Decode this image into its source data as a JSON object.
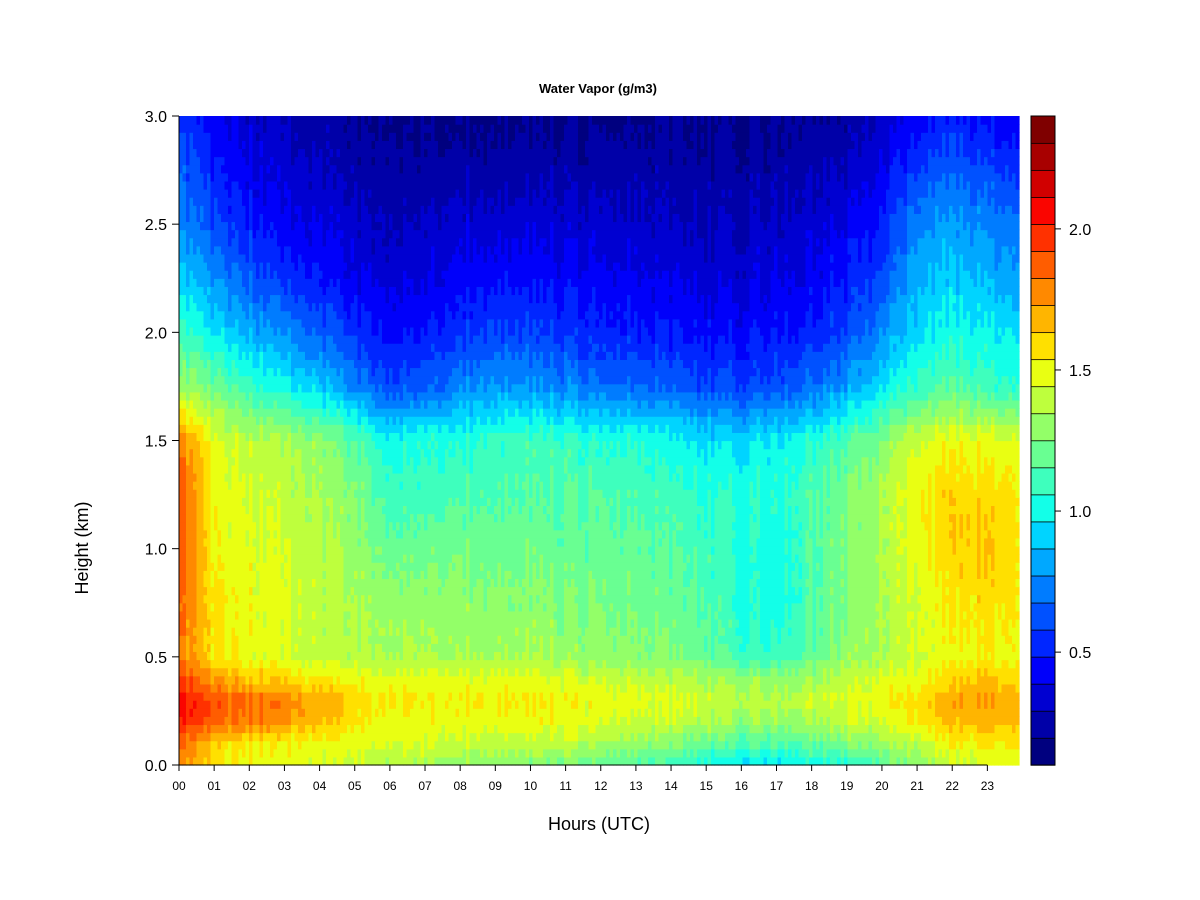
{
  "chart_data": {
    "type": "heatmap",
    "title": "Water Vapor (g/m3)",
    "xlabel": "Hours (UTC)",
    "ylabel": "Height (km)",
    "xlim": [
      0,
      23.9
    ],
    "ylim": [
      0.0,
      3.0
    ],
    "x_ticks": [
      0,
      1,
      2,
      3,
      4,
      5,
      6,
      7,
      8,
      9,
      10,
      11,
      12,
      13,
      14,
      15,
      16,
      17,
      18,
      19,
      20,
      21,
      22,
      23
    ],
    "x_tick_labels": [
      "00",
      "01",
      "02",
      "03",
      "04",
      "05",
      "06",
      "07",
      "08",
      "09",
      "10",
      "11",
      "12",
      "13",
      "14",
      "15",
      "16",
      "17",
      "18",
      "19",
      "20",
      "21",
      "22",
      "23"
    ],
    "y_ticks": [
      0.0,
      0.5,
      1.0,
      1.5,
      2.0,
      2.5,
      3.0
    ],
    "y_tick_labels": [
      "0.0",
      "0.5",
      "1.0",
      "1.5",
      "2.0",
      "2.5",
      "3.0"
    ],
    "colorbar": {
      "range": [
        0.1,
        2.4
      ],
      "levels": 23,
      "ticks": [
        0.5,
        1.0,
        1.5,
        2.0
      ],
      "tick_labels": [
        "0.5",
        "1.0",
        "1.5",
        "2.0"
      ],
      "colors": [
        "#00007f",
        "#0000a8",
        "#0000d1",
        "#0000fa",
        "#0026ff",
        "#0051ff",
        "#007cff",
        "#00a8ff",
        "#00d4ff",
        "#13ffe8",
        "#3effbd",
        "#69ff92",
        "#93ff68",
        "#beff3d",
        "#e9ff12",
        "#ffe000",
        "#ffb500",
        "#ff8900",
        "#ff5d00",
        "#ff3100",
        "#fa0500",
        "#d10000",
        "#a80000",
        "#7f0000"
      ]
    },
    "grid": false,
    "hours": [
      0,
      1,
      2,
      3,
      4,
      5,
      6,
      7,
      8,
      9,
      10,
      11,
      12,
      13,
      14,
      15,
      16,
      17,
      18,
      19,
      20,
      21,
      22,
      23,
      23.9
    ],
    "heights": [
      0.0,
      0.1,
      0.2,
      0.3,
      0.4,
      0.5,
      0.75,
      1.0,
      1.25,
      1.5,
      1.75,
      2.0,
      2.25,
      2.5,
      2.75,
      3.0
    ],
    "values": [
      [
        1.75,
        1.85,
        2.0,
        2.05,
        1.95,
        1.8,
        1.85,
        1.9,
        1.9,
        1.8,
        1.3,
        1.1,
        0.9,
        0.75,
        0.65,
        0.55
      ],
      [
        1.55,
        1.6,
        1.85,
        1.9,
        1.7,
        1.55,
        1.55,
        1.5,
        1.5,
        1.45,
        1.2,
        0.95,
        0.75,
        0.6,
        0.5,
        0.4
      ],
      [
        1.5,
        1.55,
        1.8,
        1.85,
        1.65,
        1.5,
        1.5,
        1.48,
        1.45,
        1.4,
        1.1,
        0.85,
        0.65,
        0.5,
        0.4,
        0.33
      ],
      [
        1.48,
        1.52,
        1.75,
        1.8,
        1.6,
        1.45,
        1.45,
        1.43,
        1.4,
        1.35,
        1.0,
        0.75,
        0.55,
        0.42,
        0.35,
        0.28
      ],
      [
        1.45,
        1.5,
        1.65,
        1.7,
        1.55,
        1.4,
        1.4,
        1.38,
        1.35,
        1.3,
        0.9,
        0.65,
        0.48,
        0.38,
        0.3,
        0.25
      ],
      [
        1.4,
        1.48,
        1.55,
        1.6,
        1.5,
        1.38,
        1.35,
        1.3,
        1.25,
        1.15,
        0.75,
        0.55,
        0.4,
        0.32,
        0.25,
        0.2
      ],
      [
        1.35,
        1.45,
        1.5,
        1.55,
        1.48,
        1.35,
        1.3,
        1.2,
        1.1,
        1.0,
        0.6,
        0.45,
        0.35,
        0.28,
        0.22,
        0.18
      ],
      [
        1.35,
        1.45,
        1.5,
        1.55,
        1.48,
        1.35,
        1.3,
        1.2,
        1.1,
        1.05,
        0.65,
        0.48,
        0.38,
        0.3,
        0.23,
        0.18
      ],
      [
        1.3,
        1.42,
        1.5,
        1.55,
        1.48,
        1.35,
        1.3,
        1.25,
        1.15,
        1.05,
        0.75,
        0.55,
        0.45,
        0.35,
        0.25,
        0.18
      ],
      [
        1.3,
        1.4,
        1.5,
        1.55,
        1.48,
        1.35,
        1.28,
        1.22,
        1.15,
        1.1,
        0.8,
        0.6,
        0.48,
        0.35,
        0.25,
        0.18
      ],
      [
        1.25,
        1.4,
        1.5,
        1.55,
        1.48,
        1.35,
        1.28,
        1.22,
        1.15,
        1.1,
        0.78,
        0.58,
        0.45,
        0.35,
        0.25,
        0.18
      ],
      [
        1.25,
        1.4,
        1.48,
        1.52,
        1.45,
        1.32,
        1.25,
        1.2,
        1.15,
        1.1,
        0.75,
        0.55,
        0.45,
        0.35,
        0.25,
        0.18
      ],
      [
        1.2,
        1.35,
        1.45,
        1.5,
        1.42,
        1.3,
        1.25,
        1.2,
        1.15,
        1.05,
        0.7,
        0.52,
        0.42,
        0.33,
        0.25,
        0.18
      ],
      [
        1.15,
        1.3,
        1.42,
        1.48,
        1.4,
        1.28,
        1.22,
        1.18,
        1.12,
        1.05,
        0.68,
        0.5,
        0.4,
        0.32,
        0.25,
        0.18
      ],
      [
        1.1,
        1.25,
        1.4,
        1.45,
        1.38,
        1.25,
        1.2,
        1.15,
        1.1,
        1.0,
        0.65,
        0.48,
        0.38,
        0.3,
        0.23,
        0.18
      ],
      [
        1.0,
        1.2,
        1.35,
        1.42,
        1.35,
        1.2,
        1.15,
        1.1,
        1.05,
        0.95,
        0.6,
        0.45,
        0.35,
        0.28,
        0.22,
        0.18
      ],
      [
        0.95,
        1.15,
        1.3,
        1.4,
        1.3,
        1.1,
        1.05,
        1.05,
        1.05,
        0.95,
        0.6,
        0.45,
        0.35,
        0.3,
        0.23,
        0.18
      ],
      [
        0.95,
        1.15,
        1.3,
        1.4,
        1.3,
        1.1,
        1.0,
        1.0,
        1.05,
        0.98,
        0.62,
        0.48,
        0.38,
        0.32,
        0.25,
        0.2
      ],
      [
        1.0,
        1.2,
        1.35,
        1.42,
        1.35,
        1.2,
        1.15,
        1.15,
        1.15,
        1.05,
        0.7,
        0.52,
        0.42,
        0.35,
        0.28,
        0.22
      ],
      [
        1.05,
        1.25,
        1.4,
        1.45,
        1.4,
        1.3,
        1.25,
        1.25,
        1.25,
        1.15,
        0.8,
        0.6,
        0.5,
        0.4,
        0.3,
        0.23
      ],
      [
        1.15,
        1.3,
        1.45,
        1.5,
        1.45,
        1.35,
        1.35,
        1.35,
        1.35,
        1.25,
        0.95,
        0.75,
        0.6,
        0.5,
        0.4,
        0.3
      ],
      [
        1.3,
        1.4,
        1.55,
        1.6,
        1.5,
        1.45,
        1.45,
        1.5,
        1.55,
        1.45,
        1.1,
        0.95,
        0.85,
        0.75,
        0.6,
        0.45
      ],
      [
        1.4,
        1.5,
        1.65,
        1.7,
        1.6,
        1.5,
        1.55,
        1.6,
        1.6,
        1.5,
        1.15,
        1.0,
        0.9,
        0.8,
        0.65,
        0.5
      ],
      [
        1.45,
        1.55,
        1.7,
        1.75,
        1.65,
        1.55,
        1.6,
        1.65,
        1.6,
        1.5,
        1.1,
        1.0,
        0.85,
        0.75,
        0.6,
        0.45
      ],
      [
        1.45,
        1.55,
        1.65,
        1.7,
        1.6,
        1.5,
        1.55,
        1.55,
        1.55,
        1.45,
        1.05,
        0.95,
        0.8,
        0.7,
        0.55,
        0.4
      ]
    ]
  }
}
